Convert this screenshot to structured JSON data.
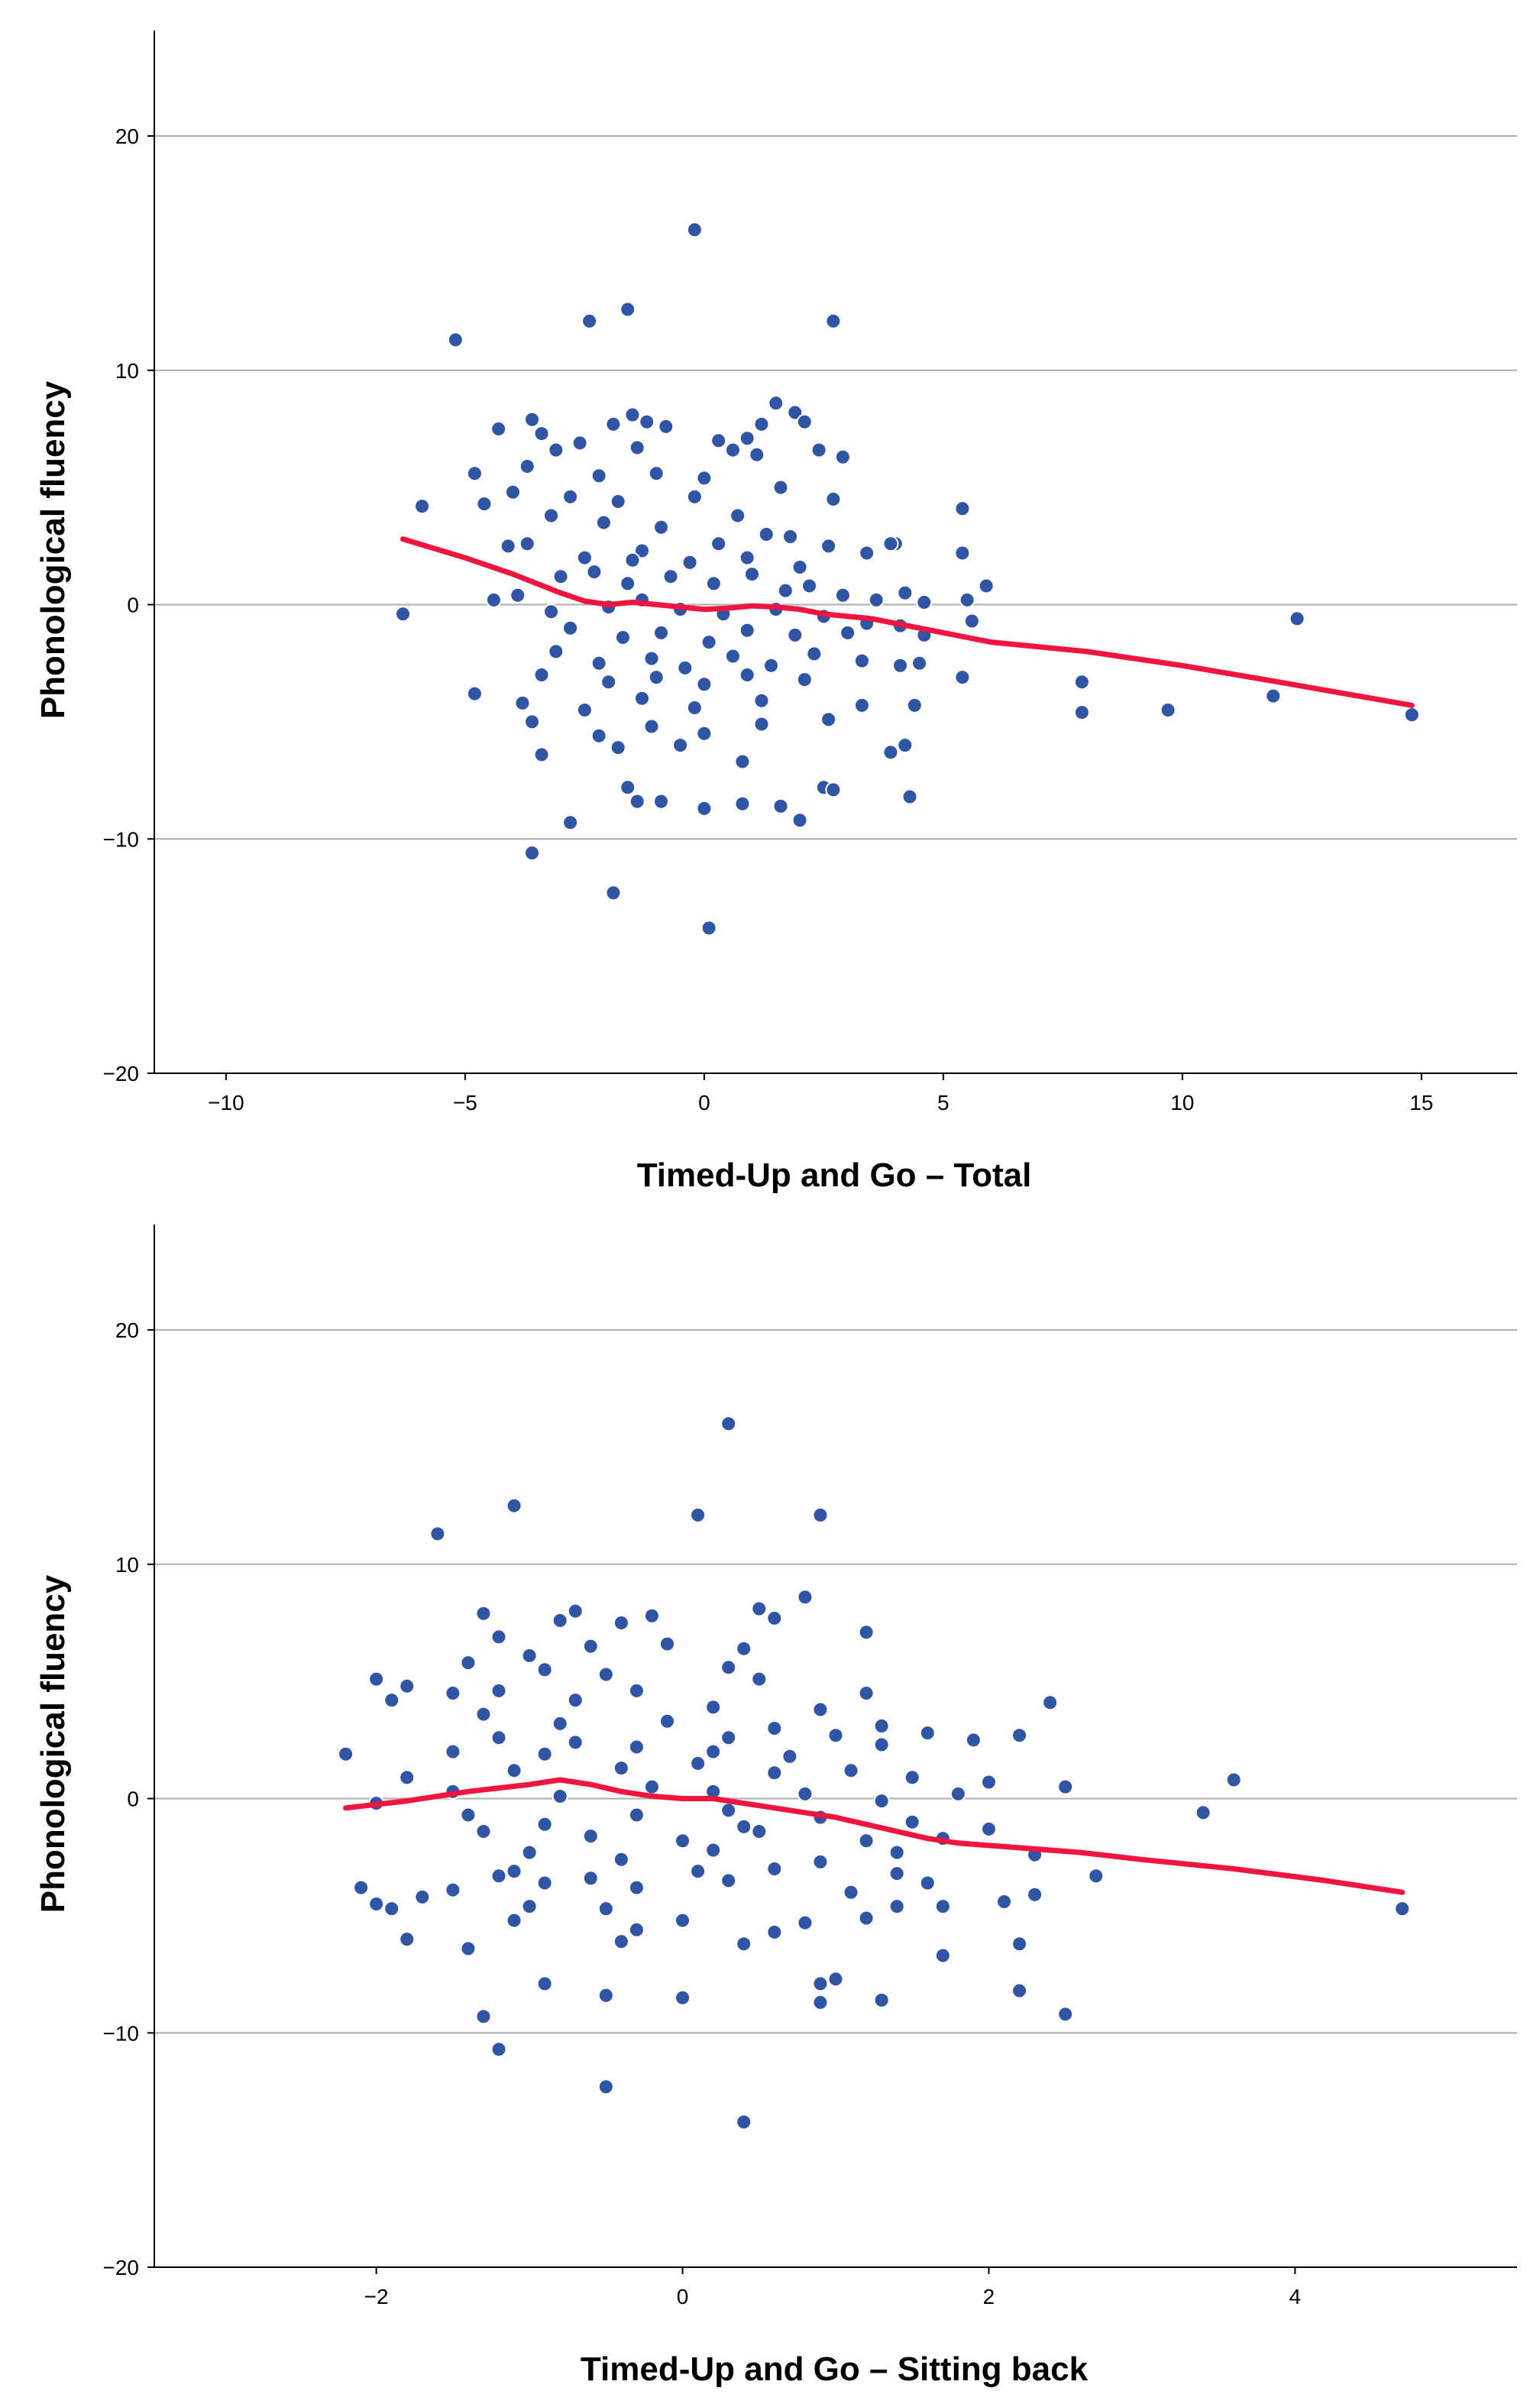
{
  "chart_data": [
    {
      "type": "scatter",
      "title": "",
      "xlabel": "Timed-Up and Go – Total",
      "ylabel": "Phonological fluency",
      "xlim": [
        -11.5,
        17
      ],
      "ylim": [
        -20,
        24.5
      ],
      "xticks": [
        -10,
        -5,
        0,
        5,
        10,
        15
      ],
      "yticks": [
        -20,
        -10,
        0,
        10,
        20
      ],
      "grid": "horizontal",
      "point_color": "#2f55a4",
      "fit_color": "#f0153f",
      "fit_line": {
        "x": [
          -6.3,
          -5,
          -4,
          -3,
          -2.5,
          -2,
          -1.5,
          -1,
          -0.5,
          0,
          0.5,
          1,
          1.5,
          2,
          2.5,
          3,
          3.5,
          4,
          4.5,
          5,
          5.5,
          6,
          8,
          10,
          12,
          14.8
        ],
        "y": [
          2.8,
          2.0,
          1.3,
          0.5,
          0.15,
          0.0,
          0.1,
          0.0,
          -0.1,
          -0.2,
          -0.15,
          -0.05,
          -0.1,
          -0.2,
          -0.4,
          -0.5,
          -0.6,
          -0.8,
          -1.0,
          -1.2,
          -1.4,
          -1.6,
          -2.0,
          -2.6,
          -3.3,
          -4.3
        ]
      },
      "points": [
        [
          -0.2,
          16.0
        ],
        [
          -1.6,
          12.6
        ],
        [
          -2.4,
          12.1
        ],
        [
          2.7,
          12.1
        ],
        [
          -5.2,
          11.3
        ],
        [
          1.5,
          8.6
        ],
        [
          1.9,
          8.2
        ],
        [
          -1.5,
          8.1
        ],
        [
          -3.6,
          7.9
        ],
        [
          -1.9,
          7.7
        ],
        [
          -4.3,
          7.5
        ],
        [
          -1.2,
          7.8
        ],
        [
          0.3,
          7.0
        ],
        [
          1.2,
          7.7
        ],
        [
          2.1,
          7.8
        ],
        [
          -3.4,
          7.3
        ],
        [
          -0.8,
          7.6
        ],
        [
          0.9,
          7.1
        ],
        [
          -2.6,
          6.9
        ],
        [
          -3.1,
          6.6
        ],
        [
          -1.4,
          6.7
        ],
        [
          0.6,
          6.6
        ],
        [
          1.1,
          6.4
        ],
        [
          2.4,
          6.6
        ],
        [
          2.9,
          6.3
        ],
        [
          -4.8,
          5.6
        ],
        [
          -3.7,
          5.9
        ],
        [
          -2.2,
          5.5
        ],
        [
          -1.0,
          5.6
        ],
        [
          0.0,
          5.4
        ],
        [
          1.6,
          5.0
        ],
        [
          -4.0,
          4.8
        ],
        [
          -2.8,
          4.6
        ],
        [
          -1.8,
          4.4
        ],
        [
          -0.2,
          4.6
        ],
        [
          2.7,
          4.5
        ],
        [
          5.4,
          4.1
        ],
        [
          -5.9,
          4.2
        ],
        [
          -4.6,
          4.3
        ],
        [
          -3.2,
          3.8
        ],
        [
          -2.1,
          3.5
        ],
        [
          -0.9,
          3.3
        ],
        [
          0.7,
          3.8
        ],
        [
          1.3,
          3.0
        ],
        [
          -4.1,
          2.5
        ],
        [
          -2.5,
          2.0
        ],
        [
          -1.3,
          2.3
        ],
        [
          -0.3,
          1.8
        ],
        [
          0.3,
          2.6
        ],
        [
          1.8,
          2.9
        ],
        [
          2.6,
          2.5
        ],
        [
          3.4,
          2.2
        ],
        [
          4.0,
          2.6
        ],
        [
          5.4,
          2.2
        ],
        [
          -3.7,
          2.6
        ],
        [
          -1.5,
          1.9
        ],
        [
          0.9,
          2.0
        ],
        [
          2.0,
          1.6
        ],
        [
          3.9,
          2.6
        ],
        [
          -3.9,
          0.4
        ],
        [
          -3.0,
          1.2
        ],
        [
          -2.3,
          1.4
        ],
        [
          -1.6,
          0.9
        ],
        [
          -0.7,
          1.2
        ],
        [
          0.2,
          0.9
        ],
        [
          1.0,
          1.3
        ],
        [
          1.7,
          0.6
        ],
        [
          2.2,
          0.8
        ],
        [
          2.9,
          0.4
        ],
        [
          3.6,
          0.2
        ],
        [
          4.2,
          0.5
        ],
        [
          4.6,
          0.1
        ],
        [
          5.5,
          0.2
        ],
        [
          5.9,
          0.8
        ],
        [
          -6.3,
          -0.4
        ],
        [
          -4.4,
          0.2
        ],
        [
          -3.2,
          -0.3
        ],
        [
          -2.0,
          -0.1
        ],
        [
          -1.3,
          0.2
        ],
        [
          -0.5,
          -0.2
        ],
        [
          0.4,
          -0.4
        ],
        [
          1.5,
          -0.2
        ],
        [
          2.5,
          -0.5
        ],
        [
          3.4,
          -0.8
        ],
        [
          4.1,
          -0.9
        ],
        [
          5.6,
          -0.7
        ],
        [
          -2.8,
          -1.0
        ],
        [
          -1.7,
          -1.4
        ],
        [
          -0.9,
          -1.2
        ],
        [
          0.1,
          -1.6
        ],
        [
          0.9,
          -1.1
        ],
        [
          1.9,
          -1.3
        ],
        [
          3.0,
          -1.2
        ],
        [
          4.6,
          -1.3
        ],
        [
          -3.1,
          -2.0
        ],
        [
          -2.2,
          -2.5
        ],
        [
          -1.1,
          -2.3
        ],
        [
          -0.4,
          -2.7
        ],
        [
          0.6,
          -2.2
        ],
        [
          1.4,
          -2.6
        ],
        [
          2.3,
          -2.1
        ],
        [
          3.3,
          -2.4
        ],
        [
          4.1,
          -2.6
        ],
        [
          4.5,
          -2.5
        ],
        [
          -3.4,
          -3.0
        ],
        [
          -2.0,
          -3.3
        ],
        [
          -1.0,
          -3.1
        ],
        [
          0.0,
          -3.4
        ],
        [
          0.9,
          -3.0
        ],
        [
          2.1,
          -3.2
        ],
        [
          5.4,
          -3.1
        ],
        [
          7.9,
          -3.3
        ],
        [
          -4.8,
          -3.8
        ],
        [
          -3.8,
          -4.2
        ],
        [
          -2.5,
          -4.5
        ],
        [
          -1.3,
          -4.0
        ],
        [
          -0.2,
          -4.4
        ],
        [
          1.2,
          -4.1
        ],
        [
          2.6,
          -4.9
        ],
        [
          3.3,
          -4.3
        ],
        [
          4.4,
          -4.3
        ],
        [
          7.9,
          -4.6
        ],
        [
          9.7,
          -4.5
        ],
        [
          11.9,
          -3.9
        ],
        [
          14.8,
          -4.7
        ],
        [
          -3.6,
          -5.0
        ],
        [
          -2.2,
          -5.6
        ],
        [
          -1.1,
          -5.2
        ],
        [
          0.0,
          -5.5
        ],
        [
          1.2,
          -5.1
        ],
        [
          -3.4,
          -6.4
        ],
        [
          -1.8,
          -6.1
        ],
        [
          -0.5,
          -6.0
        ],
        [
          0.8,
          -6.7
        ],
        [
          3.9,
          -6.3
        ],
        [
          4.2,
          -6.0
        ],
        [
          -1.6,
          -7.8
        ],
        [
          -0.9,
          -8.4
        ],
        [
          0.0,
          -8.7
        ],
        [
          0.8,
          -8.5
        ],
        [
          1.6,
          -8.6
        ],
        [
          2.5,
          -7.8
        ],
        [
          2.7,
          -7.9
        ],
        [
          4.3,
          -8.2
        ],
        [
          -1.4,
          -8.4
        ],
        [
          -2.8,
          -9.3
        ],
        [
          2.0,
          -9.2
        ],
        [
          -3.6,
          -10.6
        ],
        [
          -1.9,
          -12.3
        ],
        [
          0.1,
          -13.8
        ],
        [
          12.4,
          -0.6
        ]
      ]
    },
    {
      "type": "scatter",
      "title": "",
      "xlabel": "Timed-Up and Go – Sitting back",
      "ylabel": "Phonological fluency",
      "xlim": [
        -3.45,
        5.45
      ],
      "ylim": [
        -20,
        24.5
      ],
      "xticks": [
        -2,
        0,
        2,
        4
      ],
      "yticks": [
        -20,
        -10,
        0,
        10,
        20
      ],
      "grid": "horizontal",
      "point_color": "#2f55a4",
      "fit_color": "#f0153f",
      "fit_line": {
        "x": [
          -2.2,
          -1.8,
          -1.4,
          -1.0,
          -0.8,
          -0.6,
          -0.4,
          -0.2,
          0.0,
          0.2,
          0.4,
          0.6,
          0.8,
          1.0,
          1.2,
          1.4,
          1.6,
          1.8,
          2.2,
          2.6,
          3.0,
          3.6,
          4.2,
          4.7
        ],
        "y": [
          -0.4,
          -0.1,
          0.3,
          0.6,
          0.8,
          0.6,
          0.3,
          0.1,
          0.0,
          0.0,
          -0.2,
          -0.4,
          -0.6,
          -0.8,
          -1.1,
          -1.4,
          -1.7,
          -1.9,
          -2.1,
          -2.3,
          -2.6,
          -3.0,
          -3.5,
          -4.0
        ]
      },
      "points": [
        [
          0.3,
          16.0
        ],
        [
          -1.1,
          12.5
        ],
        [
          0.1,
          12.1
        ],
        [
          0.9,
          12.1
        ],
        [
          -1.6,
          11.3
        ],
        [
          0.8,
          8.6
        ],
        [
          0.5,
          8.1
        ],
        [
          -0.7,
          8.0
        ],
        [
          -1.3,
          7.9
        ],
        [
          -0.2,
          7.8
        ],
        [
          -0.8,
          7.6
        ],
        [
          -0.4,
          7.5
        ],
        [
          0.6,
          7.7
        ],
        [
          1.2,
          7.1
        ],
        [
          -1.2,
          6.9
        ],
        [
          -0.1,
          6.6
        ],
        [
          0.4,
          6.4
        ],
        [
          -0.6,
          6.5
        ],
        [
          -1.0,
          6.1
        ],
        [
          -1.4,
          5.8
        ],
        [
          -0.9,
          5.5
        ],
        [
          0.3,
          5.6
        ],
        [
          -0.5,
          5.3
        ],
        [
          0.5,
          5.1
        ],
        [
          -1.5,
          4.5
        ],
        [
          -2.0,
          5.1
        ],
        [
          -1.8,
          4.8
        ],
        [
          -1.2,
          4.6
        ],
        [
          -0.3,
          4.6
        ],
        [
          1.2,
          4.5
        ],
        [
          2.4,
          4.1
        ],
        [
          -1.9,
          4.2
        ],
        [
          -0.7,
          4.2
        ],
        [
          0.2,
          3.9
        ],
        [
          0.9,
          3.8
        ],
        [
          -1.3,
          3.6
        ],
        [
          -0.8,
          3.2
        ],
        [
          -0.1,
          3.3
        ],
        [
          0.6,
          3.0
        ],
        [
          1.3,
          3.1
        ],
        [
          -1.2,
          2.6
        ],
        [
          -0.7,
          2.4
        ],
        [
          0.3,
          2.6
        ],
        [
          1.0,
          2.7
        ],
        [
          1.6,
          2.8
        ],
        [
          2.2,
          2.7
        ],
        [
          -1.5,
          2.0
        ],
        [
          -0.9,
          1.9
        ],
        [
          -0.3,
          2.2
        ],
        [
          0.2,
          2.0
        ],
        [
          0.7,
          1.8
        ],
        [
          1.3,
          2.3
        ],
        [
          1.9,
          2.5
        ],
        [
          -2.2,
          1.9
        ],
        [
          -1.8,
          0.9
        ],
        [
          -1.1,
          1.2
        ],
        [
          -0.4,
          1.3
        ],
        [
          0.1,
          1.5
        ],
        [
          0.6,
          1.1
        ],
        [
          1.1,
          1.2
        ],
        [
          1.5,
          0.9
        ],
        [
          2.0,
          0.7
        ],
        [
          2.5,
          0.5
        ],
        [
          3.6,
          0.8
        ],
        [
          -2.0,
          -0.2
        ],
        [
          -1.5,
          0.3
        ],
        [
          -0.8,
          0.1
        ],
        [
          -0.2,
          0.5
        ],
        [
          0.2,
          0.3
        ],
        [
          0.8,
          0.2
        ],
        [
          1.3,
          -0.1
        ],
        [
          1.8,
          0.2
        ],
        [
          3.4,
          -0.6
        ],
        [
          -1.4,
          -0.7
        ],
        [
          -0.9,
          -1.1
        ],
        [
          -0.3,
          -0.7
        ],
        [
          0.4,
          -1.2
        ],
        [
          0.9,
          -0.8
        ],
        [
          1.5,
          -1.0
        ],
        [
          2.0,
          -1.3
        ],
        [
          -1.3,
          -1.4
        ],
        [
          -0.6,
          -1.6
        ],
        [
          0.0,
          -1.8
        ],
        [
          0.5,
          -1.4
        ],
        [
          1.2,
          -1.8
        ],
        [
          1.7,
          -1.7
        ],
        [
          -1.0,
          -2.3
        ],
        [
          -0.4,
          -2.6
        ],
        [
          0.2,
          -2.2
        ],
        [
          0.9,
          -2.7
        ],
        [
          1.4,
          -2.3
        ],
        [
          2.3,
          -2.4
        ],
        [
          -1.2,
          -3.3
        ],
        [
          -0.6,
          -3.4
        ],
        [
          0.1,
          -3.1
        ],
        [
          0.6,
          -3.0
        ],
        [
          1.4,
          -3.2
        ],
        [
          2.7,
          -3.3
        ],
        [
          -2.1,
          -3.8
        ],
        [
          -1.5,
          -3.9
        ],
        [
          -0.9,
          -3.6
        ],
        [
          -0.3,
          -3.8
        ],
        [
          0.3,
          -3.5
        ],
        [
          1.1,
          -4.0
        ],
        [
          1.6,
          -3.6
        ],
        [
          2.3,
          -4.1
        ],
        [
          -2.0,
          -4.5
        ],
        [
          -1.7,
          -4.2
        ],
        [
          -1.0,
          -4.6
        ],
        [
          -0.5,
          -4.7
        ],
        [
          0.0,
          -5.2
        ],
        [
          0.8,
          -5.3
        ],
        [
          1.4,
          -4.6
        ],
        [
          1.7,
          -4.6
        ],
        [
          2.1,
          -4.4
        ],
        [
          4.7,
          -4.7
        ],
        [
          -1.9,
          -4.7
        ],
        [
          -1.1,
          -5.2
        ],
        [
          -0.3,
          -5.6
        ],
        [
          0.6,
          -5.7
        ],
        [
          1.2,
          -5.1
        ],
        [
          -1.8,
          -6.0
        ],
        [
          -1.4,
          -6.4
        ],
        [
          -0.4,
          -6.1
        ],
        [
          0.4,
          -6.2
        ],
        [
          1.7,
          -6.7
        ],
        [
          2.2,
          -6.2
        ],
        [
          -0.9,
          -7.9
        ],
        [
          -0.5,
          -8.4
        ],
        [
          0.0,
          -8.5
        ],
        [
          0.9,
          -7.9
        ],
        [
          1.0,
          -7.7
        ],
        [
          1.3,
          -8.6
        ],
        [
          2.2,
          -8.2
        ],
        [
          0.9,
          -8.7
        ],
        [
          -1.3,
          -9.3
        ],
        [
          2.5,
          -9.2
        ],
        [
          -1.2,
          -10.7
        ],
        [
          -0.5,
          -12.3
        ],
        [
          0.4,
          -13.8
        ],
        [
          -1.1,
          -3.1
        ],
        [
          0.3,
          -0.5
        ]
      ]
    }
  ]
}
